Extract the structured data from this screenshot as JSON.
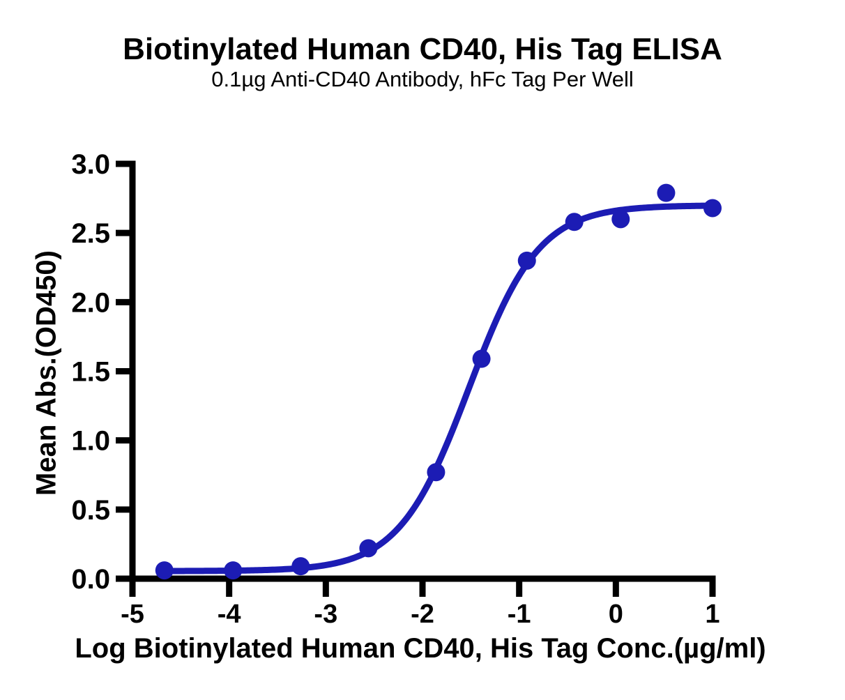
{
  "chart_data": {
    "type": "scatter",
    "title": "Biotinylated Human CD40, His Tag ELISA",
    "subtitle": "0.1µg Anti-CD40 Antibody, hFc Tag Per Well",
    "xlabel": "Log Biotinylated Human CD40, His Tag Conc.(µg/ml)",
    "ylabel": "Mean Abs.(OD450)",
    "xlim": [
      -5,
      1
    ],
    "ylim": [
      0,
      3
    ],
    "x_ticks": [
      -5,
      -4,
      -3,
      -2,
      -1,
      0,
      1
    ],
    "x_tick_labels": [
      "-5",
      "-4",
      "-3",
      "-2",
      "-1",
      "0",
      "1"
    ],
    "y_ticks": [
      0,
      0.5,
      1,
      1.5,
      2,
      2.5,
      3
    ],
    "y_tick_labels": [
      "0.0",
      "0.5",
      "1.0",
      "1.5",
      "2.0",
      "2.5",
      "3.0"
    ],
    "grid": false,
    "legend": false,
    "colors": {
      "series": "#1c1cb4",
      "axis": "#000000",
      "text": "#000000",
      "background": "#ffffff"
    },
    "series": [
      {
        "name": "Biotinylated Human CD40, His Tag",
        "marker": "circle",
        "points": [
          [
            -4.67,
            0.06
          ],
          [
            -3.96,
            0.06
          ],
          [
            -3.26,
            0.09
          ],
          [
            -2.56,
            0.22
          ],
          [
            -1.86,
            0.77
          ],
          [
            -1.39,
            1.59
          ],
          [
            -0.92,
            2.3
          ],
          [
            -0.43,
            2.58
          ],
          [
            0.05,
            2.6
          ],
          [
            0.52,
            2.79
          ],
          [
            1.0,
            2.68
          ]
        ],
        "fit_curve": {
          "model": "4PL",
          "bottom": 0.055,
          "top": 2.7,
          "log_ec50": -1.52,
          "hill_slope": 1.2,
          "x_start": -4.67,
          "x_end": 1.0
        }
      }
    ]
  }
}
